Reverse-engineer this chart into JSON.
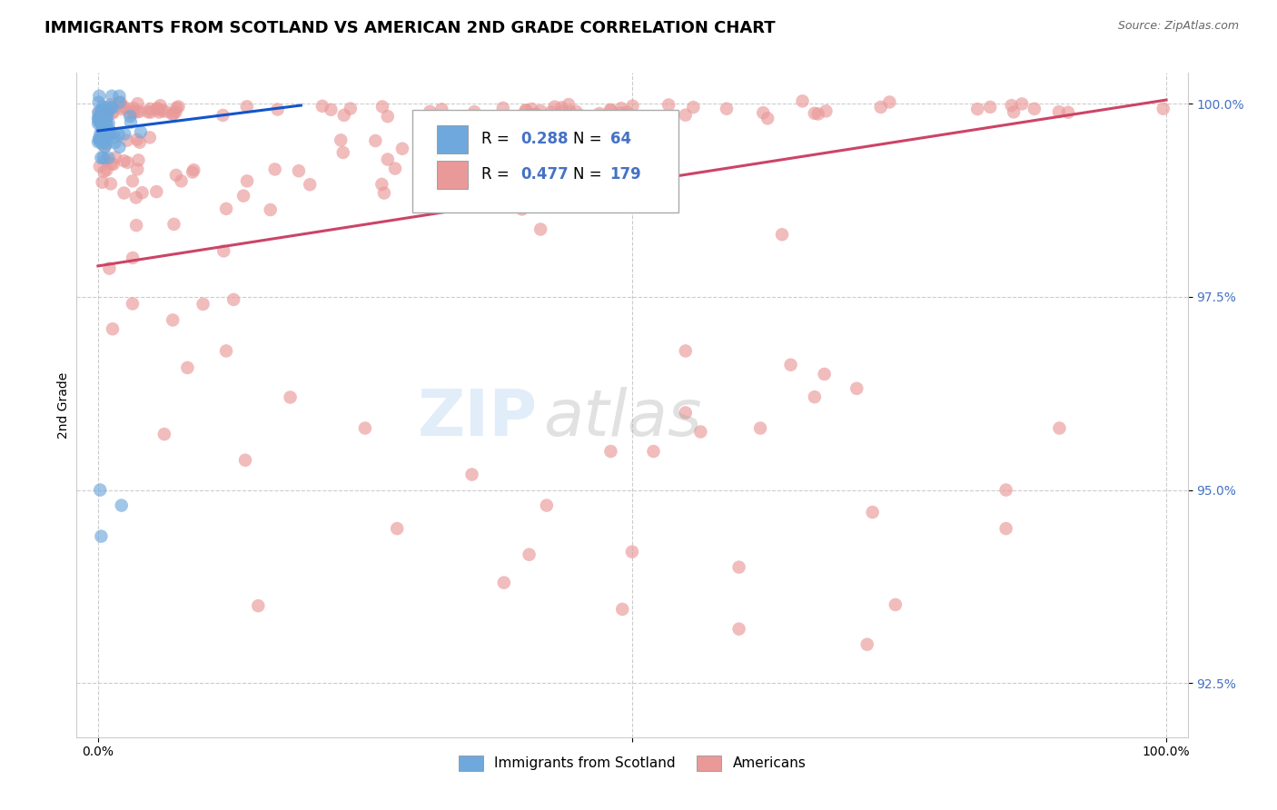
{
  "title": "IMMIGRANTS FROM SCOTLAND VS AMERICAN 2ND GRADE CORRELATION CHART",
  "source": "Source: ZipAtlas.com",
  "ylabel": "2nd Grade",
  "xlim": [
    -0.02,
    1.02
  ],
  "ylim": [
    0.918,
    1.004
  ],
  "yticks": [
    0.925,
    0.95,
    0.975,
    1.0
  ],
  "ytick_labels": [
    "92.5%",
    "95.0%",
    "97.5%",
    "100.0%"
  ],
  "xticks": [
    0.0,
    0.5,
    1.0
  ],
  "xtick_labels": [
    "0.0%",
    "",
    "100.0%"
  ],
  "blue_color": "#6fa8dc",
  "pink_color": "#ea9999",
  "blue_line_color": "#1155cc",
  "pink_line_color": "#cc4466",
  "watermark_zip": "ZIP",
  "watermark_atlas": "atlas",
  "title_fontsize": 13,
  "legend_r1": "R = 0.288",
  "legend_n1": "N =  64",
  "legend_r2": "R = 0.477",
  "legend_n2": "N = 179",
  "blue_line_x0": 0.0,
  "blue_line_y0": 0.9965,
  "blue_line_x1": 0.19,
  "blue_line_y1": 0.9998,
  "pink_line_x0": 0.0,
  "pink_line_y0": 0.979,
  "pink_line_x1": 1.0,
  "pink_line_y1": 1.0005
}
